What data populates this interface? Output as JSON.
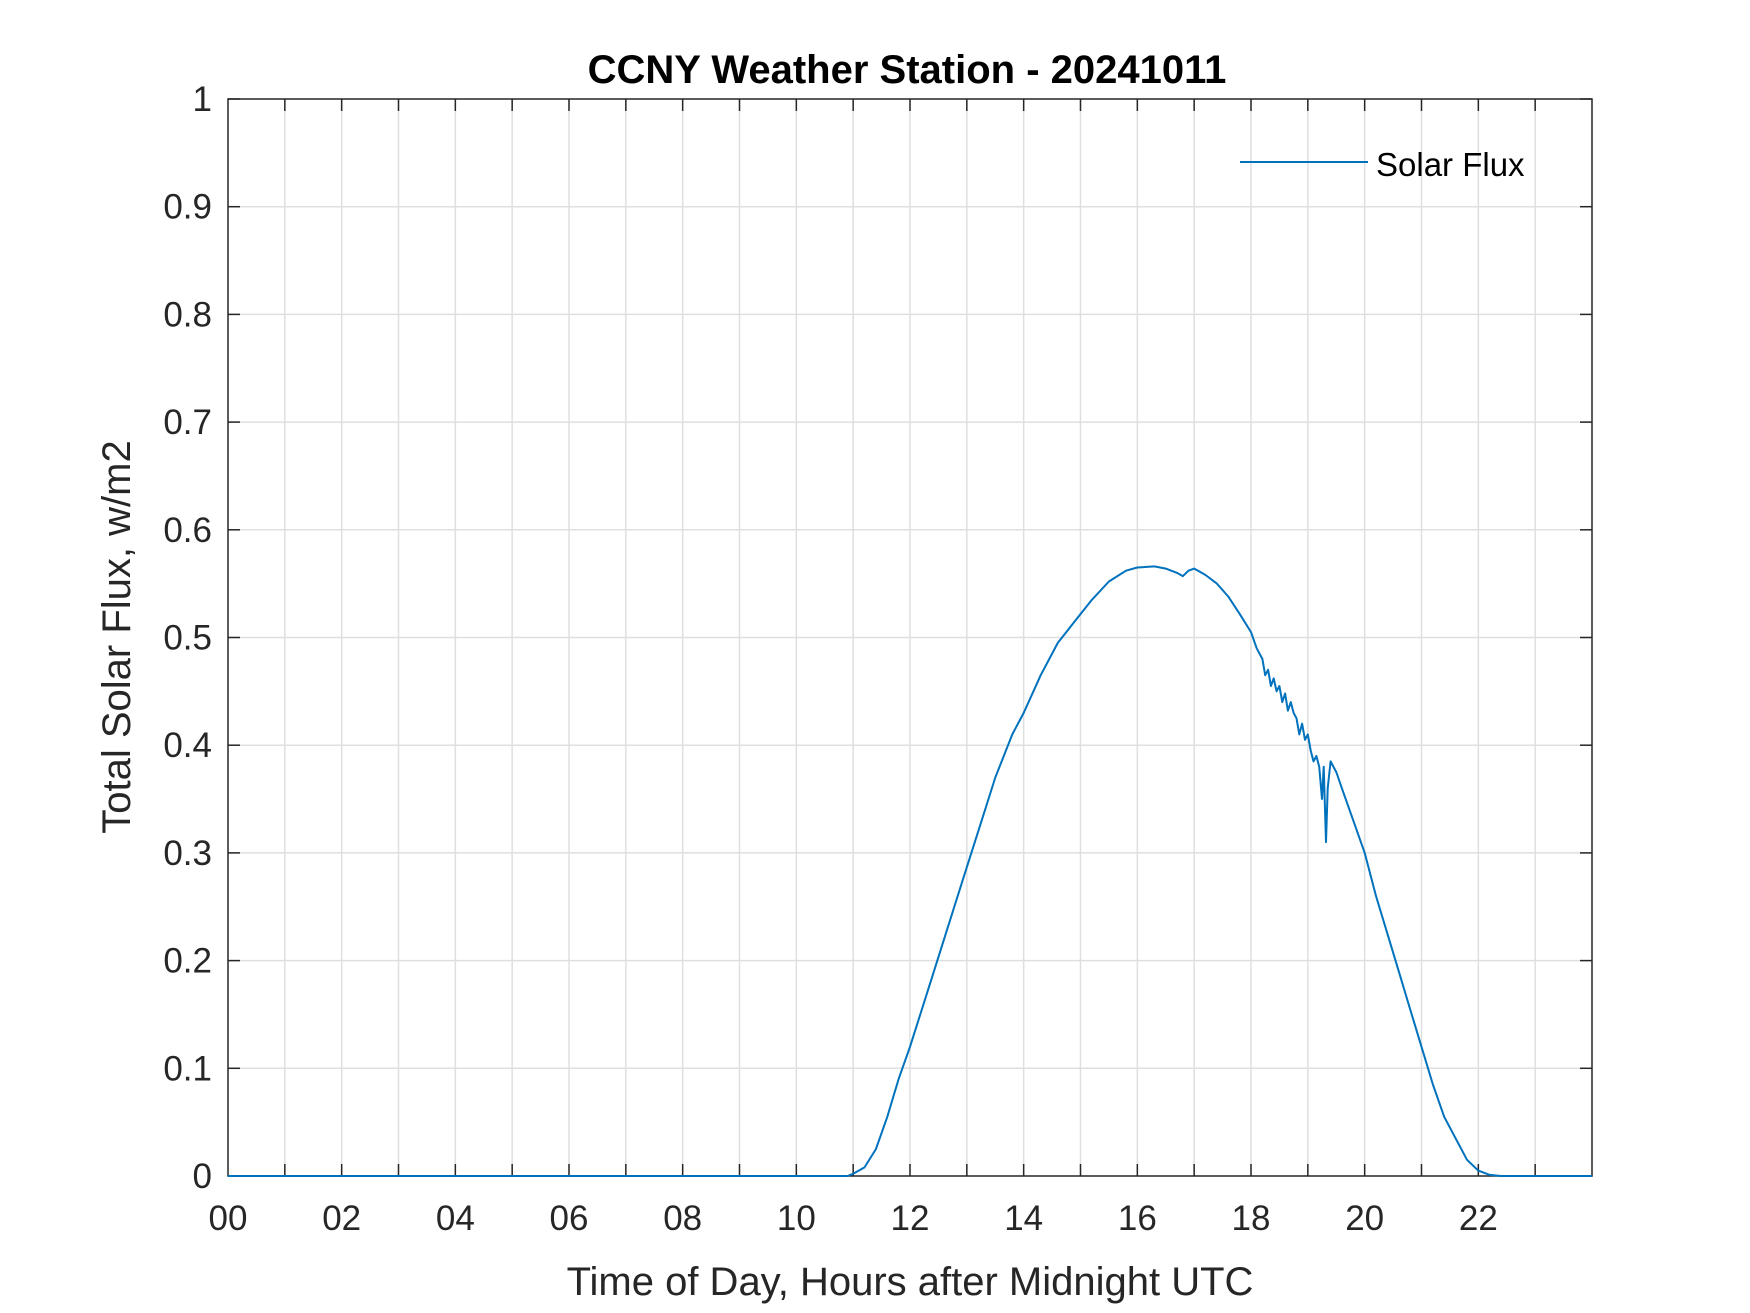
{
  "chart_data": {
    "type": "line",
    "title": "CCNY Weather Station - 20241011",
    "xlabel": "Time of Day, Hours after Midnight UTC",
    "ylabel": "Total Solar Flux, w/m2",
    "xlim": [
      0,
      24
    ],
    "ylim": [
      0,
      1
    ],
    "grid": true,
    "legend_position": "top-right",
    "xticks": [
      0,
      2,
      4,
      6,
      8,
      10,
      12,
      14,
      16,
      18,
      20,
      22
    ],
    "xtick_labels": [
      "00",
      "02",
      "04",
      "06",
      "08",
      "10",
      "12",
      "14",
      "16",
      "18",
      "20",
      "22"
    ],
    "xgrid_step": 1,
    "yticks": [
      0,
      0.1,
      0.2,
      0.3,
      0.4,
      0.5,
      0.6,
      0.7,
      0.8,
      0.9,
      1
    ],
    "ytick_labels": [
      "0",
      "0.1",
      "0.2",
      "0.3",
      "0.4",
      "0.5",
      "0.6",
      "0.7",
      "0.8",
      "0.9",
      "1"
    ],
    "series": [
      {
        "name": "Solar Flux",
        "color": "#0072BD",
        "x": [
          0,
          10.9,
          11.0,
          11.2,
          11.4,
          11.6,
          11.8,
          12.0,
          12.3,
          12.6,
          12.9,
          13.2,
          13.5,
          13.8,
          14.0,
          14.3,
          14.6,
          14.9,
          15.2,
          15.5,
          15.8,
          16.0,
          16.3,
          16.5,
          16.7,
          16.8,
          16.9,
          17.0,
          17.1,
          17.2,
          17.4,
          17.6,
          17.8,
          18.0,
          18.1,
          18.2,
          18.25,
          18.3,
          18.35,
          18.4,
          18.45,
          18.5,
          18.55,
          18.6,
          18.65,
          18.7,
          18.75,
          18.8,
          18.85,
          18.9,
          18.95,
          19.0,
          19.05,
          19.1,
          19.15,
          19.2,
          19.25,
          19.28,
          19.32,
          19.35,
          19.4,
          19.5,
          19.6,
          19.8,
          20.0,
          20.2,
          20.4,
          20.6,
          20.8,
          21.0,
          21.2,
          21.4,
          21.6,
          21.8,
          22.0,
          22.2,
          22.4,
          22.6,
          22.8,
          24.0
        ],
        "y": [
          0,
          0,
          0.002,
          0.008,
          0.025,
          0.055,
          0.09,
          0.12,
          0.17,
          0.22,
          0.27,
          0.32,
          0.37,
          0.41,
          0.43,
          0.465,
          0.495,
          0.515,
          0.535,
          0.552,
          0.562,
          0.565,
          0.566,
          0.564,
          0.56,
          0.557,
          0.562,
          0.564,
          0.561,
          0.558,
          0.55,
          0.538,
          0.522,
          0.505,
          0.49,
          0.48,
          0.465,
          0.47,
          0.455,
          0.462,
          0.45,
          0.455,
          0.44,
          0.448,
          0.432,
          0.44,
          0.43,
          0.425,
          0.41,
          0.42,
          0.405,
          0.41,
          0.395,
          0.385,
          0.39,
          0.38,
          0.35,
          0.38,
          0.31,
          0.36,
          0.385,
          0.375,
          0.36,
          0.33,
          0.3,
          0.26,
          0.225,
          0.19,
          0.155,
          0.12,
          0.085,
          0.055,
          0.035,
          0.015,
          0.005,
          0.001,
          0,
          0,
          0,
          0
        ]
      }
    ]
  }
}
